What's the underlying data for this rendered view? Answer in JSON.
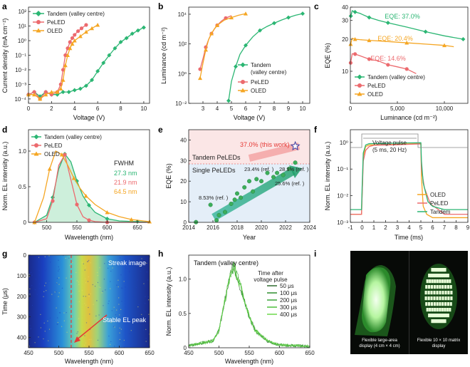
{
  "colors": {
    "tandem": "#2bb673",
    "peled": "#ec6a6e",
    "oled": "#f5a623",
    "fill_green": "#b8e8cc"
  },
  "panels": {
    "a": "a",
    "b": "b",
    "c": "c",
    "d": "d",
    "e": "e",
    "f": "f",
    "g": "g",
    "h": "h",
    "i": "i"
  },
  "legend": {
    "tandem": "Tandem (valley centre)",
    "peled": "PeLED",
    "oled": "OLED",
    "tandem_short": "Tandem"
  },
  "chart_data": [
    {
      "id": "a",
      "type": "line",
      "xlabel": "Voltage (V)",
      "ylabel": "Current density (mA cm⁻²)",
      "yscale": "log",
      "xlim": [
        0,
        10.5
      ],
      "ylim": [
        5e-05,
        200
      ],
      "xticks": [
        "0",
        "2",
        "4",
        "6",
        "8",
        "10"
      ],
      "yticks": [
        "10⁻⁴",
        "10⁻³",
        "10⁻²",
        "10⁻¹",
        "10⁰",
        "10¹",
        "10²"
      ],
      "series": [
        {
          "name": "Tandem (valley centre)",
          "key": "tandem",
          "x": [
            0,
            0.5,
            1,
            1.5,
            2,
            2.5,
            3,
            3.5,
            4,
            4.5,
            5,
            5.5,
            6,
            6.5,
            7,
            7.5,
            8,
            8.5,
            9,
            9.5,
            10
          ],
          "y": [
            0.0002,
            0.0003,
            0.00015,
            0.0003,
            0.0002,
            0.0002,
            0.0003,
            0.0003,
            0.0004,
            0.0005,
            0.0008,
            0.002,
            0.008,
            0.03,
            0.1,
            0.3,
            0.8,
            1.5,
            3,
            5,
            8
          ]
        },
        {
          "name": "PeLED",
          "key": "peled",
          "x": [
            0,
            0.5,
            1,
            1.5,
            2,
            2.5,
            2.8,
            3,
            3.2,
            3.4,
            3.6,
            3.8,
            4,
            4.3,
            4.6,
            5
          ],
          "y": [
            0.0002,
            0.0003,
            0.0001,
            0.0003,
            0.0002,
            0.0003,
            0.001,
            0.01,
            0.1,
            0.3,
            0.8,
            1.5,
            2.5,
            4.5,
            7,
            12
          ]
        },
        {
          "name": "OLED",
          "key": "oled",
          "x": [
            0,
            0.5,
            1,
            1.5,
            2,
            2.5,
            2.8,
            3,
            3.2,
            3.4,
            3.6,
            3.8,
            4,
            4.5,
            5,
            5.5,
            6
          ],
          "y": [
            0.0002,
            0.0002,
            0.0001,
            0.0002,
            0.0003,
            0.0003,
            0.0005,
            0.002,
            0.02,
            0.1,
            0.3,
            0.6,
            1,
            2,
            4,
            7,
            12
          ]
        }
      ]
    },
    {
      "id": "b",
      "type": "line",
      "xlabel": "Voltage (V)",
      "ylabel": "Luminance (cd m⁻²)",
      "yscale": "log",
      "xlim": [
        2,
        10.5
      ],
      "ylim": [
        0.01,
        30000
      ],
      "xticks": [
        "3",
        "4",
        "5",
        "6",
        "7",
        "8",
        "9",
        "10"
      ],
      "yticks": [
        "10⁻²",
        "10⁰",
        "10²",
        "10⁴"
      ],
      "series": [
        {
          "name": "Tandem (valley centre)",
          "key": "tandem",
          "x": [
            4.8,
            5,
            5.3,
            5.6,
            6,
            6.5,
            7,
            7.5,
            8,
            8.5,
            9,
            9.5,
            10
          ],
          "y": [
            0.015,
            0.3,
            3,
            20,
            80,
            300,
            800,
            1500,
            2500,
            4000,
            6000,
            8500,
            11000
          ]
        },
        {
          "name": "PeLED",
          "key": "peled",
          "x": [
            2.8,
            3,
            3.2,
            3.4,
            3.6,
            3.8,
            4,
            4.3,
            4.6,
            5
          ],
          "y": [
            2,
            10,
            60,
            200,
            500,
            1000,
            1800,
            3500,
            5500,
            8000
          ]
        },
        {
          "name": "OLED",
          "key": "oled",
          "x": [
            2.8,
            3,
            3.2,
            3.4,
            3.6,
            3.8,
            4,
            4.5,
            5,
            5.5,
            6
          ],
          "y": [
            0.5,
            5,
            40,
            200,
            500,
            1000,
            1800,
            4000,
            6000,
            8500,
            11000
          ]
        }
      ]
    },
    {
      "id": "c",
      "type": "line",
      "xlabel": "Luminance (cd m⁻²)",
      "ylabel": "EQE (%)",
      "yscale": "log",
      "xlim": [
        0,
        12500
      ],
      "ylim": [
        5,
        40
      ],
      "xticks": [
        "0",
        "5,000",
        "10,000"
      ],
      "yticks": [
        "10",
        "20",
        "30",
        "40"
      ],
      "annotations": [
        "EQE: 37.0%",
        "EQE: 20.4%",
        "EQE: 14.6%"
      ],
      "series": [
        {
          "name": "Tandem (valley centre)",
          "key": "tandem",
          "x": [
            50,
            200,
            500,
            1000,
            2000,
            3000,
            4000,
            6000,
            8000,
            10000,
            12000
          ],
          "y": [
            33,
            37,
            36,
            35,
            32,
            30,
            28.5,
            26,
            23.5,
            21.5,
            20
          ]
        },
        {
          "name": "PeLED",
          "key": "peled",
          "x": [
            30,
            200,
            500,
            1000,
            2000,
            3000,
            4000,
            5000,
            6000,
            7000
          ],
          "y": [
            12,
            14.6,
            14.5,
            14,
            13,
            12.5,
            11.5,
            11,
            10.5,
            9.5
          ]
        },
        {
          "name": "OLED",
          "key": "oled",
          "x": [
            30,
            200,
            500,
            1000,
            2000,
            4000,
            6000,
            8000,
            10000,
            11000
          ],
          "y": [
            18,
            20.4,
            20,
            19.8,
            19.5,
            19,
            18.5,
            18,
            17.5,
            17
          ]
        }
      ]
    },
    {
      "id": "d",
      "type": "line",
      "xlabel": "Wavelength (nm)",
      "ylabel": "Norm. EL intensity (a.u.)",
      "xlim": [
        470,
        670
      ],
      "ylim": [
        0,
        1.3
      ],
      "xticks": [
        "500",
        "550",
        "600",
        "650"
      ],
      "yticks": [
        "0",
        "0.5",
        "1.0"
      ],
      "fwhm_title": "FWHM",
      "fwhm": [
        "27.3 nm",
        "21.9 nm",
        "64.5 nm"
      ],
      "series": [
        {
          "name": "Tandem (valley centre)",
          "key": "tandem",
          "x": [
            480,
            500,
            510,
            520,
            530,
            540,
            550,
            560,
            570,
            580,
            600,
            620,
            650,
            670
          ],
          "y": [
            0,
            0.1,
            0.35,
            0.75,
            0.96,
            0.85,
            0.58,
            0.37,
            0.24,
            0.14,
            0.05,
            0.02,
            0.01,
            0
          ]
        },
        {
          "name": "PeLED",
          "key": "peled",
          "x": [
            480,
            500,
            510,
            520,
            530,
            540,
            550,
            560,
            570,
            580,
            600,
            670
          ],
          "y": [
            0,
            0.05,
            0.3,
            0.8,
            0.95,
            0.6,
            0.25,
            0.08,
            0.03,
            0.01,
            0,
            0
          ]
        },
        {
          "name": "OLED",
          "key": "oled",
          "x": [
            480,
            495,
            505,
            515,
            525,
            535,
            545,
            555,
            565,
            580,
            600,
            620,
            640,
            660,
            670
          ],
          "y": [
            0,
            0.35,
            0.75,
            1.0,
            0.95,
            0.8,
            0.62,
            0.48,
            0.37,
            0.25,
            0.14,
            0.08,
            0.04,
            0.02,
            0.01
          ]
        }
      ]
    },
    {
      "id": "e",
      "type": "scatter",
      "xlabel": "Year",
      "ylabel": "EQE (%)",
      "xlim": [
        2014,
        2024
      ],
      "ylim": [
        0,
        45
      ],
      "xticks": [
        "2014",
        "2016",
        "2018",
        "2020",
        "2022",
        "2024"
      ],
      "yticks": [
        "0",
        "10",
        "20",
        "30",
        "40"
      ],
      "labels": {
        "tandem_region": "Tandem PeLEDs",
        "single_region": "Single PeLEDs",
        "this_work": "37.0% (this work)"
      },
      "refs": [
        "8.53% (ref. )",
        "23.4% (ref. )",
        "28.9% (ref. )",
        "25.6% (ref. )"
      ],
      "x": [
        2014.6,
        2015.8,
        2016.3,
        2016.5,
        2017.0,
        2017.5,
        2017.8,
        2018.0,
        2018.3,
        2018.6,
        2019.0,
        2019.3,
        2019.6,
        2020.0,
        2020.5,
        2021.0,
        2021.3,
        2021.8,
        2022.3,
        2022.8
      ],
      "y": [
        0.1,
        8.5,
        1,
        3.5,
        5,
        9,
        11,
        14,
        12,
        17,
        20,
        15,
        21,
        20,
        24,
        22,
        24,
        23,
        26,
        29
      ],
      "this_work_point": [
        2022.8,
        37.0
      ]
    },
    {
      "id": "f",
      "type": "line",
      "xlabel": "Time (ms)",
      "ylabel": "Norm. EL intensity (a.u.)",
      "yscale": "log",
      "xlim": [
        -1,
        9
      ],
      "ylim": [
        0.001,
        3
      ],
      "xticks": [
        "-1",
        "0",
        "1",
        "2",
        "3",
        "4",
        "5",
        "6",
        "7",
        "8",
        "9"
      ],
      "yticks": [
        "10⁻³",
        "10⁻²",
        "10⁻¹",
        "10⁰"
      ],
      "pulse": [
        "Voltage pulse",
        "(5 ms, 20 Hz)"
      ],
      "series": [
        {
          "name": "OLED",
          "key": "oled",
          "x": [
            -1,
            -0.05,
            0,
            0.1,
            0.3,
            0.6,
            1,
            2,
            3,
            4,
            5,
            5.05,
            5.2,
            5.5,
            6,
            7,
            8,
            9
          ],
          "y": [
            0.002,
            0.002,
            0.01,
            0.3,
            0.7,
            0.8,
            0.8,
            0.82,
            0.85,
            0.88,
            0.9,
            0.05,
            0.004,
            0.002,
            0.0015,
            0.0015,
            0.0015,
            0.0015
          ]
        },
        {
          "name": "PeLED",
          "key": "peled",
          "x": [
            -1,
            -0.05,
            0,
            0.1,
            0.3,
            0.6,
            1,
            2,
            3,
            4,
            5,
            5.05,
            5.3,
            5.8,
            6.5,
            7,
            8,
            9
          ],
          "y": [
            0.002,
            0.002,
            0.01,
            0.2,
            0.5,
            0.7,
            0.78,
            0.8,
            0.82,
            0.85,
            0.88,
            0.1,
            0.02,
            0.005,
            0.003,
            0.002,
            0.002,
            0.002
          ]
        },
        {
          "name": "Tandem",
          "key": "tandem",
          "x": [
            -1,
            -0.05,
            0,
            0.1,
            0.3,
            0.6,
            1,
            2,
            3,
            4,
            5,
            5.05,
            5.2,
            5.6,
            6,
            7,
            8,
            9
          ],
          "y": [
            0.003,
            0.003,
            0.02,
            0.4,
            0.8,
            0.9,
            0.9,
            0.92,
            0.94,
            0.96,
            0.97,
            0.2,
            0.03,
            0.006,
            0.004,
            0.003,
            0.003,
            0.003
          ]
        }
      ]
    },
    {
      "id": "g",
      "type": "heatmap",
      "xlabel": "Wavelength (nm)",
      "ylabel": "Time (μs)",
      "xlim": [
        450,
        650
      ],
      "ylim": [
        0,
        450
      ],
      "xticks": [
        "450",
        "500",
        "550",
        "600",
        "650"
      ],
      "yticks": [
        "0",
        "100",
        "200",
        "300",
        "400"
      ],
      "labels": {
        "streak": "Streak image",
        "stable": "Stable EL peak"
      },
      "peak_wavelength": 523
    },
    {
      "id": "h",
      "type": "line",
      "xlabel": "Wavelength (nm)",
      "ylabel": "Norm. EL intensity (a.u.)",
      "xlim": [
        450,
        650
      ],
      "ylim": [
        0,
        1.35
      ],
      "xticks": [
        "450",
        "500",
        "550",
        "600",
        "650"
      ],
      "yticks": [
        "0",
        "0.5",
        "1.0"
      ],
      "title": "Tandem (valley centre)",
      "legend_title": [
        "Time after",
        "voltage pulse"
      ],
      "series": [
        {
          "name": "50 μs",
          "color": "#2e6b2e"
        },
        {
          "name": "100 μs",
          "color": "#2f8f2f"
        },
        {
          "name": "200 μs",
          "color": "#3aa63a"
        },
        {
          "name": "300 μs",
          "color": "#4cbf3c"
        },
        {
          "name": "400 μs",
          "color": "#6cd94a"
        }
      ],
      "peak": [
        450,
        490,
        500,
        510,
        520,
        525,
        530,
        540,
        550,
        560,
        580,
        600,
        650
      ],
      "peak_y": [
        0.03,
        0.1,
        0.25,
        0.7,
        1.1,
        1.18,
        1.05,
        0.75,
        0.45,
        0.25,
        0.1,
        0.04,
        0.02
      ]
    },
    {
      "id": "i",
      "type": "photo",
      "captions": [
        [
          "Flexible large-area",
          "display (4 cm × 4 cm)"
        ],
        [
          "Flexible 10 × 10 matrix",
          "display"
        ]
      ]
    }
  ]
}
